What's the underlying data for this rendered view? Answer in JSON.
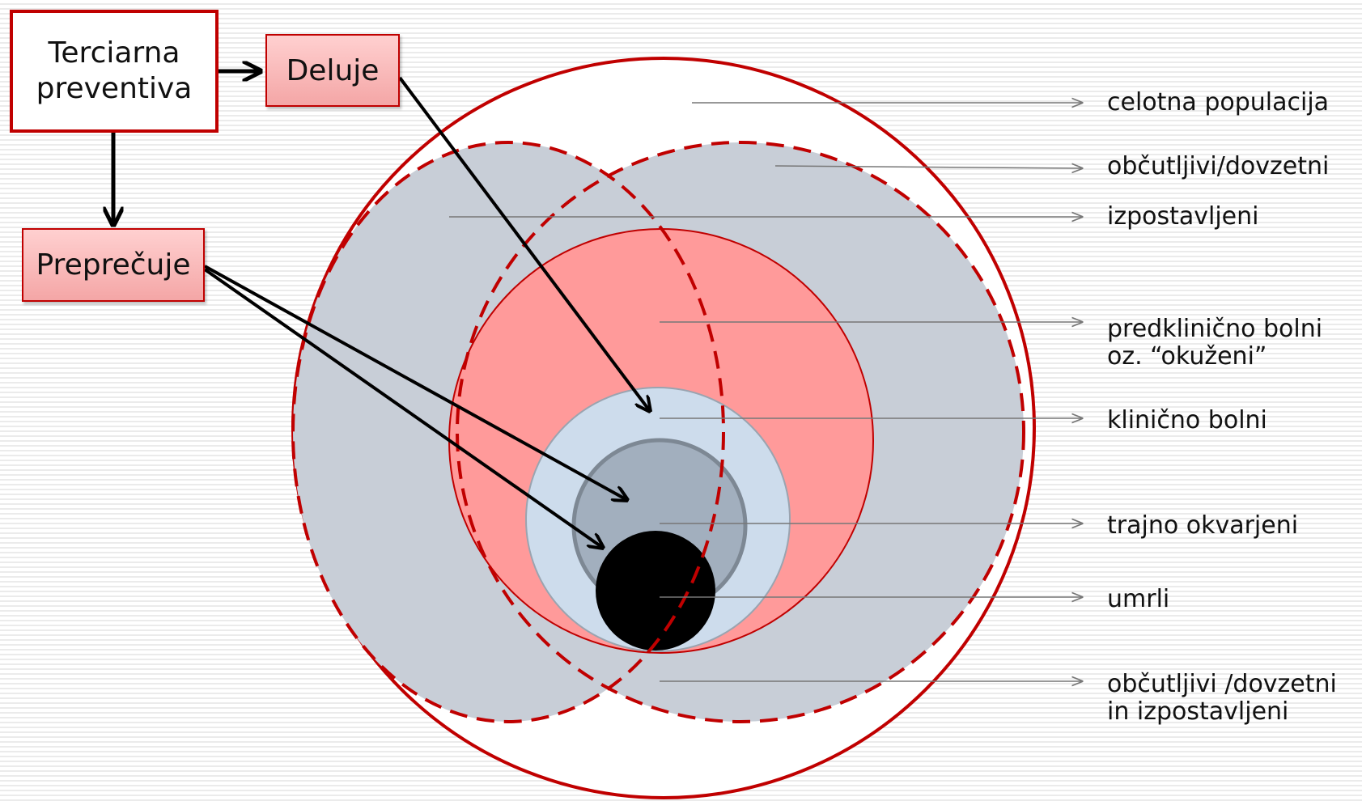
{
  "boxes": {
    "tertiary": {
      "line1": "Terciarna",
      "line2": "preventiva"
    },
    "acts": "Deluje",
    "prevents": "Preprečuje"
  },
  "labels": {
    "whole_population": "celotna populacija",
    "susceptible": "občutljivi/dovzetni",
    "exposed": "izpostavljeni",
    "preclinical_line1": "predklinično bolni",
    "preclinical_line2": "oz. “okuženi”",
    "clinical": "klinično bolni",
    "permanently_damaged": "trajno okvarjeni",
    "dead": "umrli",
    "susceptible_exposed_line1": "občutljivi /dovzetni",
    "susceptible_exposed_line2": "in izpostavljeni"
  },
  "colors": {
    "outline_red": "#c00000",
    "grey_fill": "#c8ced7",
    "pink_fill": "#ff9a9a",
    "light_blue_fill": "#cddcec",
    "slate_fill": "#a2afbe",
    "black_fill": "#000000"
  }
}
